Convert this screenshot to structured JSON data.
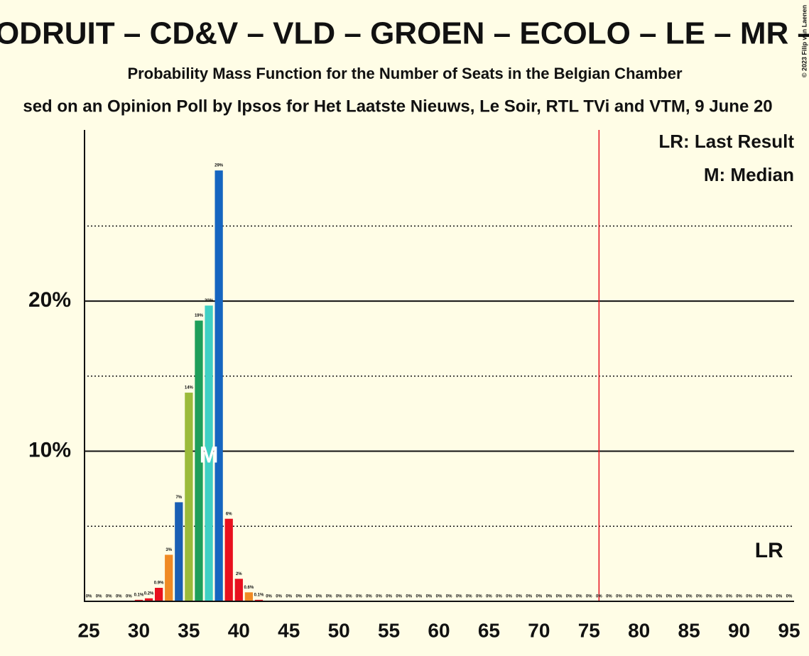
{
  "chart_data": {
    "type": "bar",
    "title": "ODRUIT – CD&V – VLD – GROEN – ECOLO – LE – MR –",
    "subtitle": "Probability Mass Function for the Number of Seats in the Belgian Chamber",
    "source": "sed on an Opinion Poll by Ipsos for Het Laatste Nieuws, Le Soir, RTL TVi and VTM, 9 June 20",
    "copyright": "© 2023 Filip van Laenen",
    "x": [
      25,
      26,
      27,
      28,
      29,
      30,
      31,
      32,
      33,
      34,
      35,
      36,
      37,
      38,
      39,
      40,
      41,
      42,
      43,
      44,
      45,
      46,
      47,
      48,
      49,
      50,
      51,
      52,
      53,
      54,
      55,
      56,
      57,
      58,
      59,
      60,
      61,
      62,
      63,
      64,
      65,
      66,
      67,
      68,
      69,
      70,
      71,
      72,
      73,
      74,
      75,
      76,
      77,
      78,
      79,
      80,
      81,
      82,
      83,
      84,
      85,
      86,
      87,
      88,
      89,
      90,
      91,
      92,
      93,
      94,
      95
    ],
    "values": [
      0,
      0,
      0,
      0,
      0,
      0.1,
      0.2,
      0.9,
      3.1,
      6.6,
      13.9,
      18.7,
      19.7,
      28.7,
      5.5,
      1.5,
      0.6,
      0.1,
      0,
      0,
      0,
      0,
      0,
      0,
      0,
      0,
      0,
      0,
      0,
      0,
      0,
      0,
      0,
      0,
      0,
      0,
      0,
      0,
      0,
      0,
      0,
      0,
      0,
      0,
      0,
      0,
      0,
      0,
      0,
      0,
      0,
      0,
      0,
      0,
      0,
      0,
      0,
      0,
      0,
      0,
      0,
      0,
      0,
      0,
      0,
      0,
      0,
      0,
      0,
      0,
      0
    ],
    "value_labels": [
      "0%",
      "0%",
      "0%",
      "0%",
      "0%",
      "0.1%",
      "0.2%",
      "0.9%",
      "3%",
      "7%",
      "14%",
      "19%",
      "20%",
      "29%",
      "6%",
      "2%",
      "0.6%",
      "0.1%",
      "0%",
      "0%",
      "0%",
      "0%",
      "0%",
      "0%",
      "0%",
      "0%",
      "0%",
      "0%",
      "0%",
      "0%",
      "0%",
      "0%",
      "0%",
      "0%",
      "0%",
      "0%",
      "0%",
      "0%",
      "0%",
      "0%",
      "0%",
      "0%",
      "0%",
      "0%",
      "0%",
      "0%",
      "0%",
      "0%",
      "0%",
      "0%",
      "0%",
      "0%",
      "0%",
      "0%",
      "0%",
      "0%",
      "0%",
      "0%",
      "0%",
      "0%",
      "0%",
      "0%",
      "0%",
      "0%",
      "0%",
      "0%",
      "0%",
      "0%",
      "0%",
      "0%",
      "0%"
    ],
    "colors": [
      "#888888",
      "#888888",
      "#888888",
      "#888888",
      "#888888",
      "#e8101e",
      "#e8101e",
      "#e8101e",
      "#f08a24",
      "#1a5fb4",
      "#9bbb3b",
      "#1e9e5a",
      "#3fd0c4",
      "#1565c0",
      "#e8101e",
      "#e8101e",
      "#f08a24",
      "#e8101e",
      "#888888",
      "#888888",
      "#888888",
      "#888888",
      "#888888",
      "#888888",
      "#888888",
      "#888888",
      "#888888",
      "#888888",
      "#888888",
      "#888888",
      "#888888",
      "#888888",
      "#888888",
      "#888888",
      "#888888",
      "#888888",
      "#888888",
      "#888888",
      "#888888",
      "#888888",
      "#888888",
      "#888888",
      "#888888",
      "#888888",
      "#888888",
      "#888888",
      "#888888",
      "#888888",
      "#888888",
      "#888888",
      "#888888",
      "#888888",
      "#888888",
      "#888888",
      "#888888",
      "#888888",
      "#888888",
      "#888888",
      "#888888",
      "#888888",
      "#888888",
      "#888888",
      "#888888",
      "#888888",
      "#888888",
      "#888888",
      "#888888",
      "#888888",
      "#888888",
      "#888888",
      "#888888"
    ],
    "xlim": [
      24.5,
      95.5
    ],
    "xticks": [
      25,
      30,
      35,
      40,
      45,
      50,
      55,
      60,
      65,
      70,
      75,
      80,
      85,
      90,
      95
    ],
    "ylim": [
      0,
      31.4
    ],
    "yticks": [
      {
        "value": 10,
        "label": "10%"
      },
      {
        "value": 20,
        "label": "20%"
      }
    ],
    "minor_yticks": [
      5,
      15,
      25
    ],
    "majority": 76,
    "median": 37,
    "median_label": "M",
    "last_result": 93,
    "last_result_label": "LR",
    "legend": [
      "LR: Last Result",
      "M: Median"
    ]
  }
}
